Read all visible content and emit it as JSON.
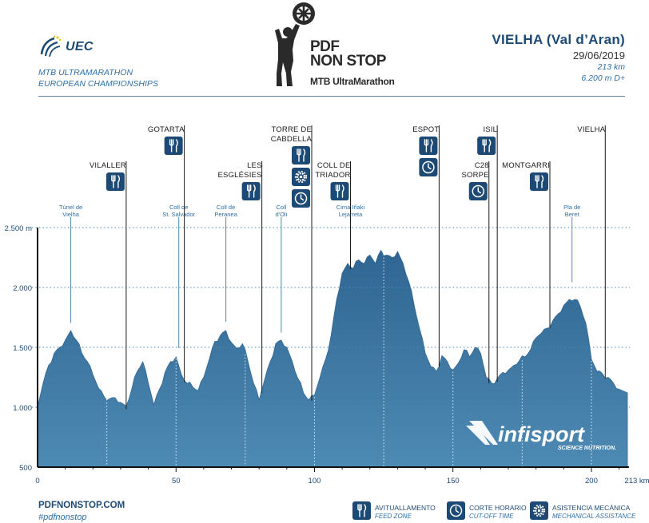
{
  "header": {
    "federation": "UEC",
    "subtitle_line1": "MTB ULTRAMARATHON",
    "subtitle_line2": "EUROPEAN CHAMPIONSHIPS",
    "logo_line1": "PDF",
    "logo_line2": "NON STOP",
    "logo_line3": "MTB UltraMarathon",
    "race_title": "VIELHA (Val d’Aran)",
    "race_date": "29/06/2019",
    "distance": "213 km",
    "elevation_gain": "6.200 m D+"
  },
  "footer": {
    "website": "PDFNONSTOP.COM",
    "hashtag": "#pdfnonstop",
    "sponsor": "infisport",
    "sponsor_tagline": "SCIENCE NUTRITION."
  },
  "legend": [
    {
      "icon": "fork-knife-icon",
      "label": "AVITUALLAMENTO",
      "sublabel": "FEED ZONE"
    },
    {
      "icon": "clock-icon",
      "label": "CORTE HORARIO",
      "sublabel": "CUT-OFF TIME"
    },
    {
      "icon": "gear-icon",
      "label": "ASISTENCIA MECÁNICA",
      "sublabel": "MECHANICAL ASSISTANCE"
    }
  ],
  "colors": {
    "profile_fill": "#2f6592",
    "profile_fill_light": "#4d8ab3",
    "accent": "#1d4a74",
    "gridline": "#4d8ab3"
  },
  "chart_data": {
    "type": "area",
    "xlabel": "",
    "ylabel": "",
    "xlim": [
      0,
      213
    ],
    "ylim": [
      500,
      2500
    ],
    "x_ticks": [
      "0",
      "50",
      "100",
      "150",
      "200"
    ],
    "x_end_label": "213 km",
    "y_ticks": [
      {
        "value": 2500,
        "label": "2.500 m"
      },
      {
        "value": 2000,
        "label": "2.000"
      },
      {
        "value": 1500,
        "label": "1.500"
      },
      {
        "value": 1000,
        "label": "1.000"
      },
      {
        "value": 500,
        "label": "500"
      }
    ],
    "grid_y": true,
    "series": [
      {
        "x": [
          0,
          2,
          4,
          6,
          8,
          10,
          12,
          14,
          16,
          18,
          20,
          22,
          24,
          26,
          28,
          30,
          32,
          34,
          36,
          38,
          40,
          42,
          44,
          46,
          48,
          50,
          52,
          54,
          56,
          58,
          60,
          62,
          64,
          66,
          68,
          70,
          72,
          74,
          76,
          78,
          80,
          82,
          84,
          86,
          88,
          90,
          92,
          94,
          96,
          98,
          100,
          102,
          104,
          106,
          108,
          110,
          112,
          114,
          116,
          118,
          120,
          122,
          124,
          126,
          128,
          130,
          132,
          134,
          136,
          138,
          140,
          142,
          144,
          146,
          148,
          150,
          152,
          154,
          156,
          158,
          160,
          162,
          164,
          166,
          168,
          170,
          172,
          174,
          176,
          178,
          180,
          182,
          184,
          186,
          188,
          190,
          192,
          194,
          196,
          198,
          200,
          202,
          204,
          206,
          208,
          210,
          213
        ],
        "y": [
          1000,
          1200,
          1350,
          1450,
          1500,
          1560,
          1640,
          1560,
          1450,
          1380,
          1270,
          1160,
          1090,
          1070,
          1080,
          1040,
          1010,
          1150,
          1300,
          1380,
          1200,
          1020,
          1150,
          1290,
          1380,
          1420,
          1270,
          1200,
          1170,
          1140,
          1250,
          1400,
          1550,
          1600,
          1640,
          1540,
          1490,
          1530,
          1380,
          1200,
          1060,
          1230,
          1380,
          1530,
          1560,
          1500,
          1380,
          1240,
          1120,
          1060,
          1100,
          1250,
          1400,
          1600,
          1900,
          2120,
          2200,
          2160,
          2230,
          2200,
          2270,
          2200,
          2310,
          2270,
          2250,
          2300,
          2200,
          2050,
          1850,
          1650,
          1450,
          1340,
          1300,
          1430,
          1380,
          1310,
          1370,
          1480,
          1420,
          1500,
          1450,
          1250,
          1200,
          1240,
          1290,
          1310,
          1350,
          1390,
          1420,
          1480,
          1580,
          1620,
          1660,
          1720,
          1780,
          1850,
          1900,
          1900,
          1840,
          1700,
          1400,
          1300,
          1280,
          1250,
          1200,
          1150,
          1120
        ]
      }
    ],
    "annotations": [
      {
        "km": 12,
        "label": "Túnel de Vielha",
        "elev": 1650
      },
      {
        "km": 51,
        "label": "Coll de St. Salvador",
        "elev": 1440
      },
      {
        "km": 68,
        "label": "Coll de Peranea",
        "elev": 1660
      },
      {
        "km": 88,
        "label": "Coll d'Oli",
        "elev": 1570
      },
      {
        "km": 113,
        "label": "Cima Iñaki Lejarreta",
        "elev": 2220
      },
      {
        "km": 193,
        "label": "Pla de Beret",
        "elev": 1990
      }
    ],
    "stations": [
      {
        "km": 32,
        "name": "VILALLER",
        "icons": [
          "fork-knife-icon"
        ]
      },
      {
        "km": 53,
        "name": "GOTARTA",
        "icons": [
          "fork-knife-icon"
        ]
      },
      {
        "km": 81,
        "name": "LES ESGLÉSIES",
        "icons": [
          "fork-knife-icon"
        ]
      },
      {
        "km": 99,
        "name": "TORRE DE CABDELLA",
        "icons": [
          "fork-knife-icon",
          "gear-icon",
          "clock-icon"
        ]
      },
      {
        "km": 113,
        "name": "COLL DE TRIADOR",
        "icons": [
          "fork-knife-icon"
        ]
      },
      {
        "km": 145,
        "name": "ESPOT",
        "icons": [
          "fork-knife-icon",
          "clock-icon"
        ]
      },
      {
        "km": 163,
        "name": "C28 SORPE",
        "icons": [
          "clock-icon"
        ]
      },
      {
        "km": 166,
        "name": "ISIL",
        "icons": [
          "fork-knife-icon"
        ]
      },
      {
        "km": 185,
        "name": "MONTGARRI",
        "icons": [
          "fork-knife-icon"
        ]
      },
      {
        "km": 205,
        "name": "VIELHA",
        "icons": []
      }
    ]
  }
}
